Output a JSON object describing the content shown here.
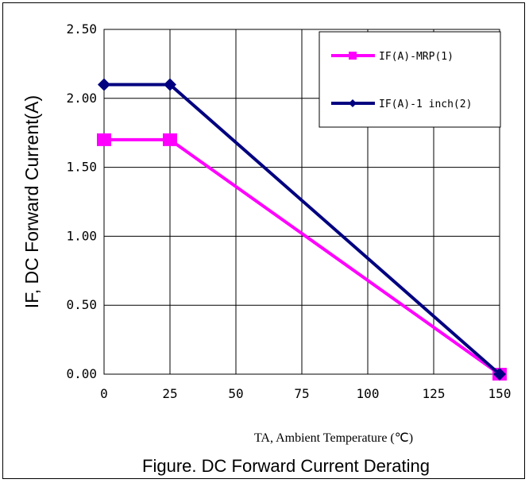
{
  "chart_data": {
    "type": "line",
    "title": "Figure. DC Forward Current Derating",
    "xlabel": "TA, Ambient Temperature (℃)",
    "ylabel": "IF, DC Forward Current(A)",
    "x": [
      0,
      25,
      150
    ],
    "xlim": [
      0,
      150
    ],
    "ylim": [
      0,
      2.5
    ],
    "xticks": [
      0,
      25,
      50,
      75,
      100,
      125,
      150
    ],
    "xtick_labels": [
      "0",
      "25",
      "50",
      "75",
      "100",
      "125",
      "150"
    ],
    "yticks": [
      0,
      0.5,
      1.0,
      1.5,
      2.0,
      2.5
    ],
    "ytick_labels": [
      "0.00",
      "0.50",
      "1.00",
      "1.50",
      "2.00",
      "2.50"
    ],
    "grid": true,
    "legend_position": "top-right",
    "series": [
      {
        "name": "IF(A)-MRP(1)",
        "values": [
          1.7,
          1.7,
          0.0
        ],
        "color": "#ff00ff",
        "marker": "square"
      },
      {
        "name": "IF(A)-1 inch(2)",
        "values": [
          2.1,
          2.1,
          0.0
        ],
        "color": "#000080",
        "marker": "diamond"
      }
    ]
  }
}
